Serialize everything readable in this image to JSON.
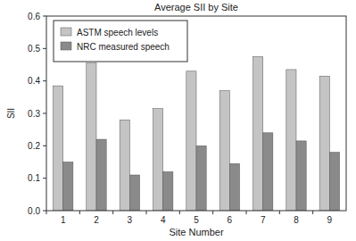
{
  "chart_data": {
    "type": "bar",
    "title": "Average SII by Site",
    "x_label": "Site Number",
    "y_label": "SII",
    "categories": [
      "1",
      "2",
      "3",
      "4",
      "5",
      "6",
      "7",
      "8",
      "9"
    ],
    "series": [
      {
        "name": "ASTM speech levels",
        "color": "#c4c4c4",
        "values": [
          0.385,
          0.455,
          0.28,
          0.315,
          0.43,
          0.37,
          0.475,
          0.435,
          0.415
        ]
      },
      {
        "name": "NRC measured speech",
        "color": "#8a8a8a",
        "values": [
          0.15,
          0.22,
          0.11,
          0.12,
          0.2,
          0.145,
          0.24,
          0.215,
          0.18
        ]
      }
    ],
    "ylim": [
      0,
      0.6
    ],
    "yticks": [
      {
        "value": 0,
        "label": "0.0"
      },
      0.1,
      0.2,
      0.3,
      0.4,
      0.5,
      0.6
    ],
    "grid": false,
    "legend": "upper-left"
  }
}
